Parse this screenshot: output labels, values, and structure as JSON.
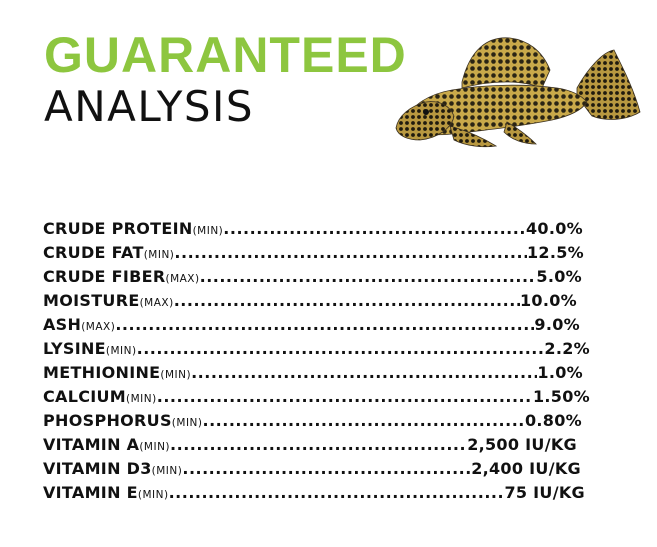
{
  "title": {
    "line1": "GUARANTEED",
    "line2": "ANALYSIS"
  },
  "colors": {
    "accent_green": "#8dc63f",
    "text": "#111111"
  },
  "image": {
    "subject": "pleco-fish"
  },
  "analysis": [
    {
      "name": "CRUDE PROTEIN",
      "qualifier": "(MIN)",
      "value": "40.0%"
    },
    {
      "name": "CRUDE FAT",
      "qualifier": "(MIN)",
      "value": "12.5%"
    },
    {
      "name": "CRUDE FIBER",
      "qualifier": "(MAX)",
      "value": "5.0%"
    },
    {
      "name": "MOISTURE",
      "qualifier": "(MAX)",
      "value": "10.0%"
    },
    {
      "name": "ASH",
      "qualifier": "(MAX)",
      "value": "9.0%"
    },
    {
      "name": "LYSINE",
      "qualifier": "(MIN)",
      "value": "2.2%"
    },
    {
      "name": "METHIONINE",
      "qualifier": "(MIN)",
      "value": "1.0%"
    },
    {
      "name": "CALCIUM",
      "qualifier": "(MIN)",
      "value": "1.50%"
    },
    {
      "name": "PHOSPHORUS",
      "qualifier": "(MIN)",
      "value": "0.80%"
    },
    {
      "name": "VITAMIN A",
      "qualifier": "(MIN)",
      "value": "2,500 IU/KG"
    },
    {
      "name": "VITAMIN D3",
      "qualifier": "(MIN)",
      "value": "2,400 IU/KG"
    },
    {
      "name": "VITAMIN E",
      "qualifier": "(MIN)",
      "value": "75 IU/KG"
    }
  ]
}
